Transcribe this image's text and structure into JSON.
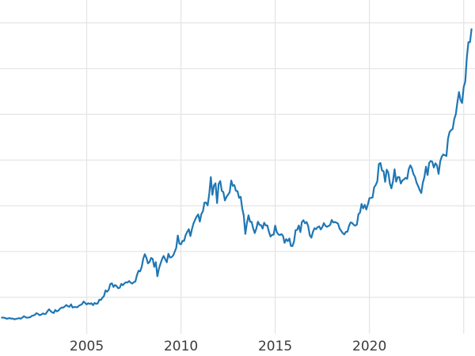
{
  "chart_data": {
    "type": "line",
    "title": "",
    "xlabel": "",
    "ylabel": "",
    "legend": "none",
    "grid": true,
    "background": "#ffffff",
    "grid_color": "#e4e4e4",
    "line_color": "#1f77b4",
    "line_width": 2.2,
    "tick_label_color": "#3c3c3c",
    "tick_font_size": 17,
    "xlim": [
      2000.4,
      2025.6
    ],
    "ylim": [
      100,
      3750
    ],
    "x_start": 2000.5,
    "x_step_years": 0.0833333,
    "x_ticks": [
      {
        "value": 2005,
        "label": "2005"
      },
      {
        "value": 2010,
        "label": "2010"
      },
      {
        "value": 2015,
        "label": "2015"
      },
      {
        "value": 2020,
        "label": "2020"
      }
    ],
    "x_gridlines": [
      2005,
      2010,
      2015,
      2020,
      2025
    ],
    "y_gridlines": [
      500,
      1000,
      1500,
      2000,
      2500,
      3000,
      3500
    ],
    "values": [
      277,
      277,
      274,
      265,
      269,
      272,
      266,
      267,
      258,
      264,
      267,
      271,
      266,
      277,
      293,
      283,
      276,
      279,
      282,
      296,
      301,
      308,
      326,
      318,
      304,
      310,
      323,
      317,
      319,
      347,
      368,
      350,
      334,
      328,
      361,
      346,
      354,
      375,
      388,
      386,
      398,
      416,
      402,
      396,
      423,
      388,
      393,
      392,
      391,
      407,
      415,
      425,
      453,
      438,
      422,
      435,
      427,
      435,
      414,
      437,
      429,
      433,
      473,
      470,
      495,
      513,
      575,
      561,
      582,
      644,
      653,
      613,
      634,
      623,
      599,
      603,
      646,
      632,
      651,
      664,
      661,
      677,
      659,
      650,
      665,
      672,
      743,
      789,
      783,
      833,
      923,
      971,
      933,
      871,
      885,
      930,
      918,
      833,
      884,
      730,
      814,
      869,
      919,
      952,
      916,
      883,
      975,
      934,
      939,
      955,
      995,
      1040,
      1175,
      1087,
      1078,
      1118,
      1115,
      1179,
      1215,
      1244,
      1169,
      1246,
      1307,
      1346,
      1383,
      1405,
      1327,
      1411,
      1439,
      1535,
      1536,
      1505,
      1628,
      1813,
      1620,
      1722,
      1746,
      1531,
      1738,
      1770,
      1662,
      1651,
      1558,
      1598,
      1622,
      1648,
      1776,
      1719,
      1726,
      1664,
      1660,
      1588,
      1598,
      1469,
      1394,
      1192,
      1313,
      1396,
      1326,
      1324,
      1253,
      1202,
      1251,
      1326,
      1291,
      1288,
      1250,
      1315,
      1285,
      1285,
      1216,
      1164,
      1182,
      1184,
      1283,
      1213,
      1187,
      1180,
      1191,
      1171,
      1095,
      1135,
      1114,
      1142,
      1061,
      1060,
      1111,
      1234,
      1237,
      1285,
      1212,
      1322,
      1342,
      1309,
      1322,
      1277,
      1178,
      1152,
      1212,
      1255,
      1244,
      1266,
      1275,
      1242,
      1267,
      1311,
      1280,
      1271,
      1280,
      1291,
      1345,
      1318,
      1323,
      1315,
      1305,
      1250,
      1224,
      1202,
      1187,
      1215,
      1217,
      1281,
      1319,
      1313,
      1292,
      1282,
      1295,
      1409,
      1427,
      1520,
      1472,
      1511,
      1460,
      1517,
      1584,
      1586,
      1591,
      1702,
      1728,
      1768,
      1957,
      1967,
      1886,
      1878,
      1762,
      1895,
      1863,
      1742,
      1691,
      1767,
      1899,
      1763,
      1814,
      1814,
      1743,
      1777,
      1788,
      1806,
      1795,
      1900,
      1942,
      1911,
      1848,
      1817,
      1753,
      1715,
      1671,
      1640,
      1753,
      1814,
      1928,
      1836,
      1969,
      1990,
      1982,
      1919,
      1965,
      1940,
      1849,
      1983,
      2036,
      2062,
      2053,
      2044,
      2233,
      2307,
      2327,
      2339,
      2447,
      2503,
      2634,
      2744,
      2657,
      2625,
      2798,
      2858,
      3123,
      3288,
      3289,
      3430
    ]
  }
}
